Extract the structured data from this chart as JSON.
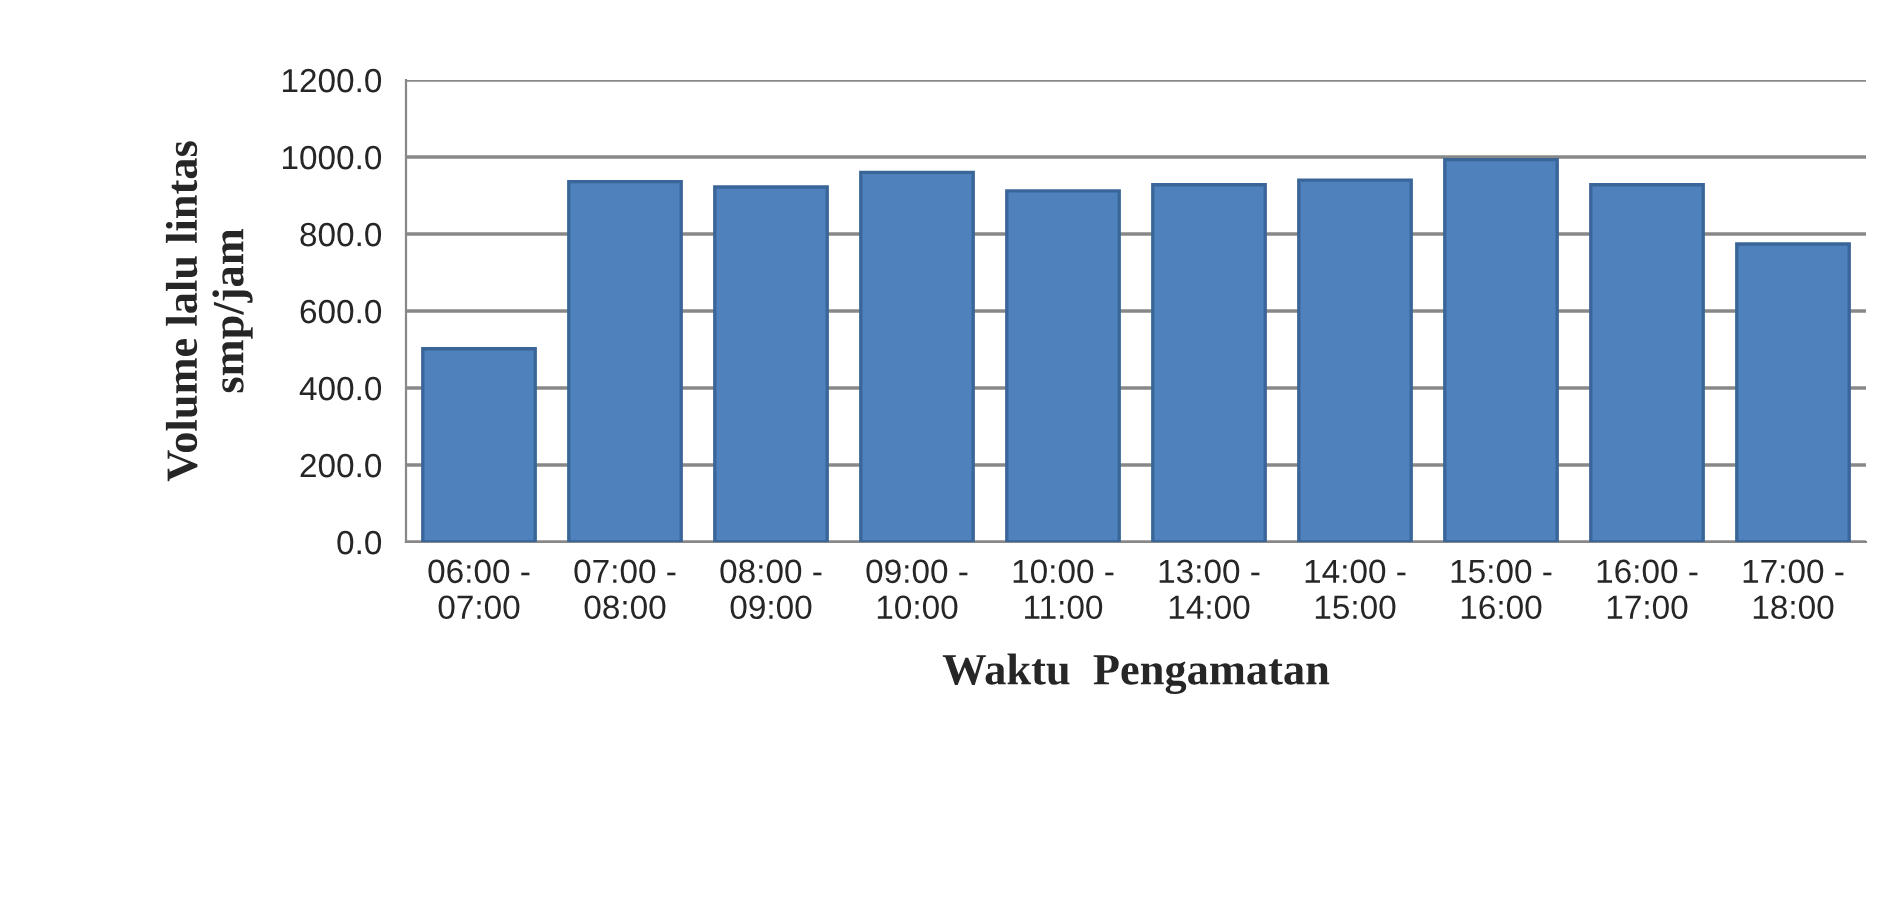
{
  "chart_data": {
    "type": "bar",
    "xlabel": "Waktu  Pengamatan",
    "ylabel": "Volume lalu lintas\nsmp/jam",
    "categories": [
      "06:00 -\n07:00",
      "07:00 -\n08:00",
      "08:00 -\n09:00",
      "09:00 -\n10:00",
      "10:00 -\n11:00",
      "13:00 -\n14:00",
      "14:00 -\n15:00",
      "15:00 -\n16:00",
      "16:00 -\n17:00",
      "17:00 -\n18:00"
    ],
    "values": [
      502,
      936,
      922,
      960,
      912,
      928,
      940,
      993,
      928,
      774
    ],
    "color": "#4f81bd",
    "ylim": [
      0,
      1200
    ],
    "yticks": [
      {
        "value": 0,
        "label": "0.0"
      },
      {
        "value": 200,
        "label": "200.0"
      },
      {
        "value": 400,
        "label": "400.0"
      },
      {
        "value": 600,
        "label": "600.0"
      },
      {
        "value": 800,
        "label": "800.0"
      },
      {
        "value": 1000,
        "label": "1000.0"
      },
      {
        "value": 1200,
        "label": "1200.0"
      }
    ],
    "grid": "y",
    "legend": false
  }
}
